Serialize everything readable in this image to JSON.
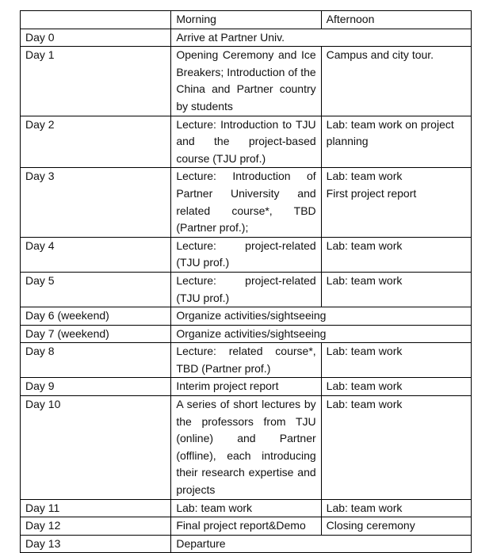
{
  "header": {
    "day": "",
    "morning": "Morning",
    "afternoon": "Afternoon"
  },
  "rows": [
    {
      "day": "Day 0",
      "morning": "Arrive at Partner Univ.",
      "afternoon": "",
      "span": true
    },
    {
      "day": "Day 1",
      "morning": "Opening Ceremony and Ice Breakers; Introduction of the China and Partner country by students",
      "afternoon": "Campus and city tour."
    },
    {
      "day": "Day 2",
      "morning": "Lecture: Introduction to TJU and the project-based course (TJU prof.)",
      "afternoon": "Lab: team work on project planning"
    },
    {
      "day": "Day 3",
      "morning": "Lecture: Introduction of Partner University and related course*, TBD (Partner prof.);",
      "afternoon": "Lab: team work\nFirst project report"
    },
    {
      "day": "Day 4",
      "morning": "Lecture: project-related (TJU prof.)",
      "afternoon": "Lab: team work"
    },
    {
      "day": "Day 5",
      "morning": "Lecture: project-related (TJU prof.)",
      "afternoon": "Lab: team work"
    },
    {
      "day": "Day 6 (weekend)",
      "morning": "Organize activities/sightseeing",
      "afternoon": "",
      "span": true
    },
    {
      "day": "Day 7 (weekend)",
      "morning": "Organize activities/sightseeing",
      "afternoon": "",
      "span": true
    },
    {
      "day": "Day 8",
      "morning": "Lecture: related course*, TBD (Partner prof.)",
      "afternoon": "Lab: team work"
    },
    {
      "day": "Day 9",
      "morning": "Interim project report",
      "afternoon": "Lab: team work"
    },
    {
      "day": "Day 10",
      "morning": "A series of short lectures by the professors from TJU (online) and Partner (offline), each introducing their research expertise and projects",
      "afternoon": "Lab: team work"
    },
    {
      "day": "Day 11",
      "morning": "Lab: team work",
      "afternoon": "Lab: team work"
    },
    {
      "day": "Day 12",
      "morning": "Final project report&Demo",
      "afternoon": "Closing ceremony"
    },
    {
      "day": "Day 13",
      "morning": "Departure",
      "afternoon": "",
      "span": true
    }
  ]
}
